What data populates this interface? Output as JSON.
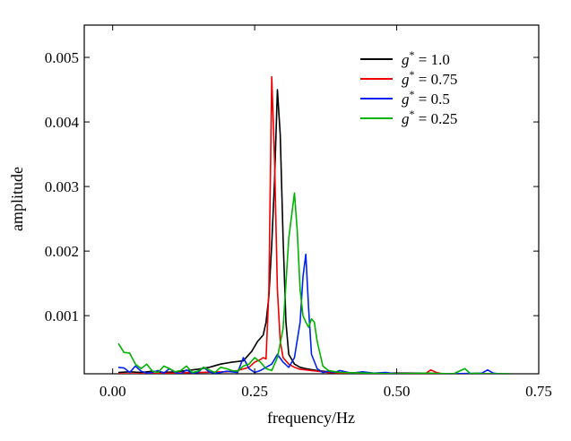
{
  "chart_data": {
    "type": "line",
    "xlabel": "frequency/Hz",
    "ylabel": "amplitude",
    "xlim": [
      -0.05,
      0.75
    ],
    "ylim": [
      0.0001,
      0.0055
    ],
    "xticks": [
      0.0,
      0.25,
      0.5,
      0.75
    ],
    "xtick_labels": [
      "0.00",
      "0.25",
      "0.50",
      "0.75"
    ],
    "yticks": [
      0.001,
      0.002,
      0.003,
      0.004,
      0.005
    ],
    "ytick_labels": [
      "0.001",
      "0.002",
      "0.003",
      "0.004",
      "0.005"
    ],
    "grid": false,
    "legend_position": "top-right",
    "series": [
      {
        "name": "g* = 1.0",
        "legend_symbol": "g",
        "legend_sup": "*",
        "legend_rest": " = 1.0",
        "color": "#000000",
        "x": [
          0.01,
          0.03,
          0.05,
          0.07,
          0.09,
          0.11,
          0.13,
          0.15,
          0.17,
          0.19,
          0.21,
          0.23,
          0.245,
          0.255,
          0.265,
          0.27,
          0.275,
          0.28,
          0.285,
          0.29,
          0.295,
          0.3,
          0.305,
          0.31,
          0.32,
          0.33,
          0.34,
          0.36,
          0.38,
          0.4,
          0.45,
          0.5,
          0.55,
          0.6,
          0.65,
          0.7
        ],
        "y": [
          0.00012,
          0.00013,
          0.00012,
          0.00014,
          0.00012,
          0.00013,
          0.00015,
          0.00017,
          0.0002,
          0.00025,
          0.00028,
          0.0003,
          0.00045,
          0.0006,
          0.0007,
          0.0009,
          0.0013,
          0.0021,
          0.0031,
          0.0045,
          0.0038,
          0.0022,
          0.0009,
          0.0004,
          0.00025,
          0.0002,
          0.00018,
          0.00015,
          0.00013,
          0.00012,
          0.00011,
          0.00011,
          0.00011,
          0.0001,
          0.0001,
          0.0001
        ]
      },
      {
        "name": "g* = 0.75",
        "legend_symbol": "g",
        "legend_sup": "*",
        "legend_rest": " = 0.75",
        "color": "#ee0000",
        "x": [
          0.01,
          0.05,
          0.1,
          0.15,
          0.2,
          0.22,
          0.24,
          0.25,
          0.26,
          0.265,
          0.27,
          0.275,
          0.28,
          0.285,
          0.29,
          0.295,
          0.3,
          0.31,
          0.32,
          0.33,
          0.34,
          0.35,
          0.36,
          0.37,
          0.38,
          0.4,
          0.45,
          0.5,
          0.55,
          0.56,
          0.57,
          0.58,
          0.6,
          0.65,
          0.7
        ],
        "y": [
          0.0001,
          0.0001,
          0.00011,
          0.00012,
          0.00013,
          0.00015,
          0.0002,
          0.00028,
          0.00032,
          0.00035,
          0.00033,
          0.0014,
          0.0047,
          0.0034,
          0.0014,
          0.0006,
          0.00035,
          0.00025,
          0.0002,
          0.00017,
          0.00016,
          0.00015,
          0.00014,
          0.00013,
          0.00012,
          0.00011,
          0.0001,
          0.0001,
          0.0001,
          0.00016,
          0.00012,
          0.0001,
          0.0001,
          0.0001,
          0.0001
        ]
      },
      {
        "name": "g* = 0.5",
        "legend_symbol": "g",
        "legend_sup": "*",
        "legend_rest": " = 0.5",
        "color": "#0022ee",
        "x": [
          0.01,
          0.02,
          0.03,
          0.04,
          0.05,
          0.06,
          0.07,
          0.08,
          0.09,
          0.1,
          0.11,
          0.12,
          0.13,
          0.14,
          0.15,
          0.16,
          0.17,
          0.18,
          0.19,
          0.2,
          0.21,
          0.22,
          0.23,
          0.24,
          0.25,
          0.26,
          0.27,
          0.28,
          0.29,
          0.3,
          0.31,
          0.32,
          0.33,
          0.335,
          0.34,
          0.345,
          0.35,
          0.36,
          0.37,
          0.38,
          0.39,
          0.4,
          0.42,
          0.44,
          0.46,
          0.48,
          0.5,
          0.55,
          0.6,
          0.65,
          0.66,
          0.67,
          0.68,
          0.7
        ],
        "y": [
          0.0002,
          0.00019,
          0.00012,
          0.00022,
          0.00014,
          0.00011,
          0.00012,
          0.00015,
          0.00011,
          0.00018,
          0.00012,
          0.0001,
          0.00016,
          0.00011,
          0.00012,
          0.0002,
          0.00013,
          0.00011,
          0.00012,
          0.00014,
          0.00013,
          0.00012,
          0.00035,
          0.00018,
          0.00012,
          0.00015,
          0.0002,
          0.00025,
          0.0004,
          0.00028,
          0.0002,
          0.00035,
          0.0009,
          0.0016,
          0.00195,
          0.0011,
          0.0004,
          0.00018,
          0.00012,
          0.00014,
          0.00012,
          0.00015,
          0.00011,
          0.00013,
          0.00011,
          0.00012,
          0.0001,
          0.0001,
          0.0001,
          0.00011,
          0.00016,
          0.00011,
          0.0001,
          0.0001
        ]
      },
      {
        "name": "g* = 0.25",
        "legend_symbol": "g",
        "legend_sup": "*",
        "legend_rest": " = 0.25",
        "color": "#00b300",
        "x": [
          0.01,
          0.02,
          0.03,
          0.04,
          0.05,
          0.06,
          0.07,
          0.08,
          0.09,
          0.1,
          0.11,
          0.12,
          0.13,
          0.14,
          0.15,
          0.16,
          0.17,
          0.18,
          0.19,
          0.2,
          0.21,
          0.22,
          0.23,
          0.24,
          0.25,
          0.26,
          0.27,
          0.28,
          0.29,
          0.3,
          0.31,
          0.32,
          0.325,
          0.33,
          0.335,
          0.34,
          0.345,
          0.35,
          0.355,
          0.36,
          0.37,
          0.38,
          0.4,
          0.45,
          0.5,
          0.55,
          0.6,
          0.62,
          0.63,
          0.64,
          0.65,
          0.7
        ],
        "y": [
          0.00057,
          0.00043,
          0.00042,
          0.00025,
          0.00018,
          0.00025,
          0.00014,
          0.00012,
          0.00022,
          0.00018,
          0.00013,
          0.00015,
          0.00022,
          0.00012,
          0.00014,
          0.0002,
          0.00016,
          0.00012,
          0.0002,
          0.00018,
          0.00015,
          0.00014,
          0.00022,
          0.00025,
          0.00035,
          0.00028,
          0.00018,
          0.00015,
          0.00035,
          0.0008,
          0.0022,
          0.0029,
          0.0023,
          0.0014,
          0.001,
          0.0009,
          0.00082,
          0.00095,
          0.0009,
          0.0006,
          0.00022,
          0.00015,
          0.00012,
          0.00011,
          0.0001,
          0.00011,
          0.0001,
          0.00018,
          0.0001,
          0.00011,
          0.0001,
          0.0001
        ]
      }
    ]
  }
}
